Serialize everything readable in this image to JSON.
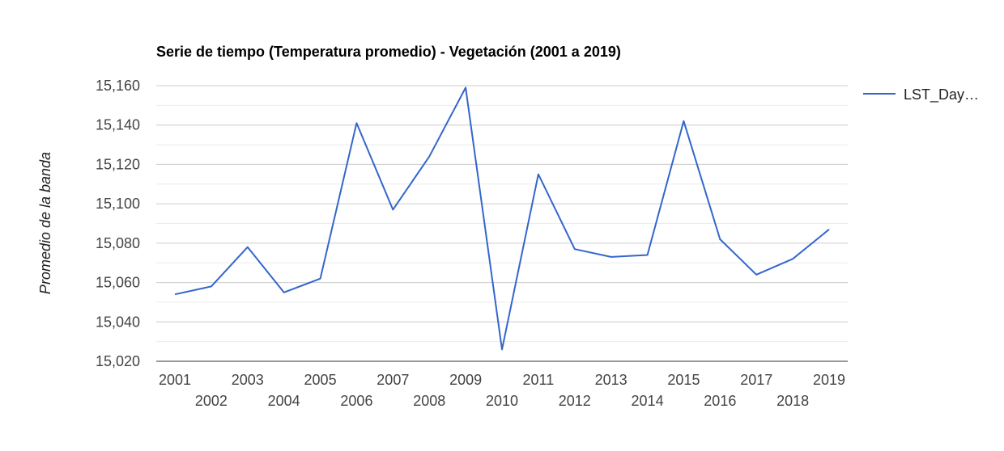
{
  "chart_data": {
    "type": "line",
    "title": "Serie de tiempo (Temperatura promedio) - Vegetación (2001 a 2019)",
    "xlabel": "",
    "ylabel": "Promedio de la banda",
    "ylim": [
      15020,
      15160
    ],
    "yticks": [
      15020,
      15040,
      15060,
      15080,
      15100,
      15120,
      15140,
      15160
    ],
    "ytick_labels": [
      "15,020",
      "15,040",
      "15,060",
      "15,080",
      "15,100",
      "15,120",
      "15,140",
      "15,160"
    ],
    "x": [
      "2001",
      "2002",
      "2003",
      "2004",
      "2005",
      "2006",
      "2007",
      "2008",
      "2009",
      "2010",
      "2011",
      "2012",
      "2013",
      "2014",
      "2015",
      "2016",
      "2017",
      "2018",
      "2019"
    ],
    "series": [
      {
        "name": "LST_Day…",
        "color": "#3366cc",
        "values": [
          15054,
          15058,
          15078,
          15055,
          15062,
          15141,
          15097,
          15124,
          15159,
          15026,
          15115,
          15077,
          15073,
          15074,
          15142,
          15082,
          15064,
          15072,
          15087
        ]
      }
    ],
    "grid": true,
    "legend_position": "right"
  }
}
